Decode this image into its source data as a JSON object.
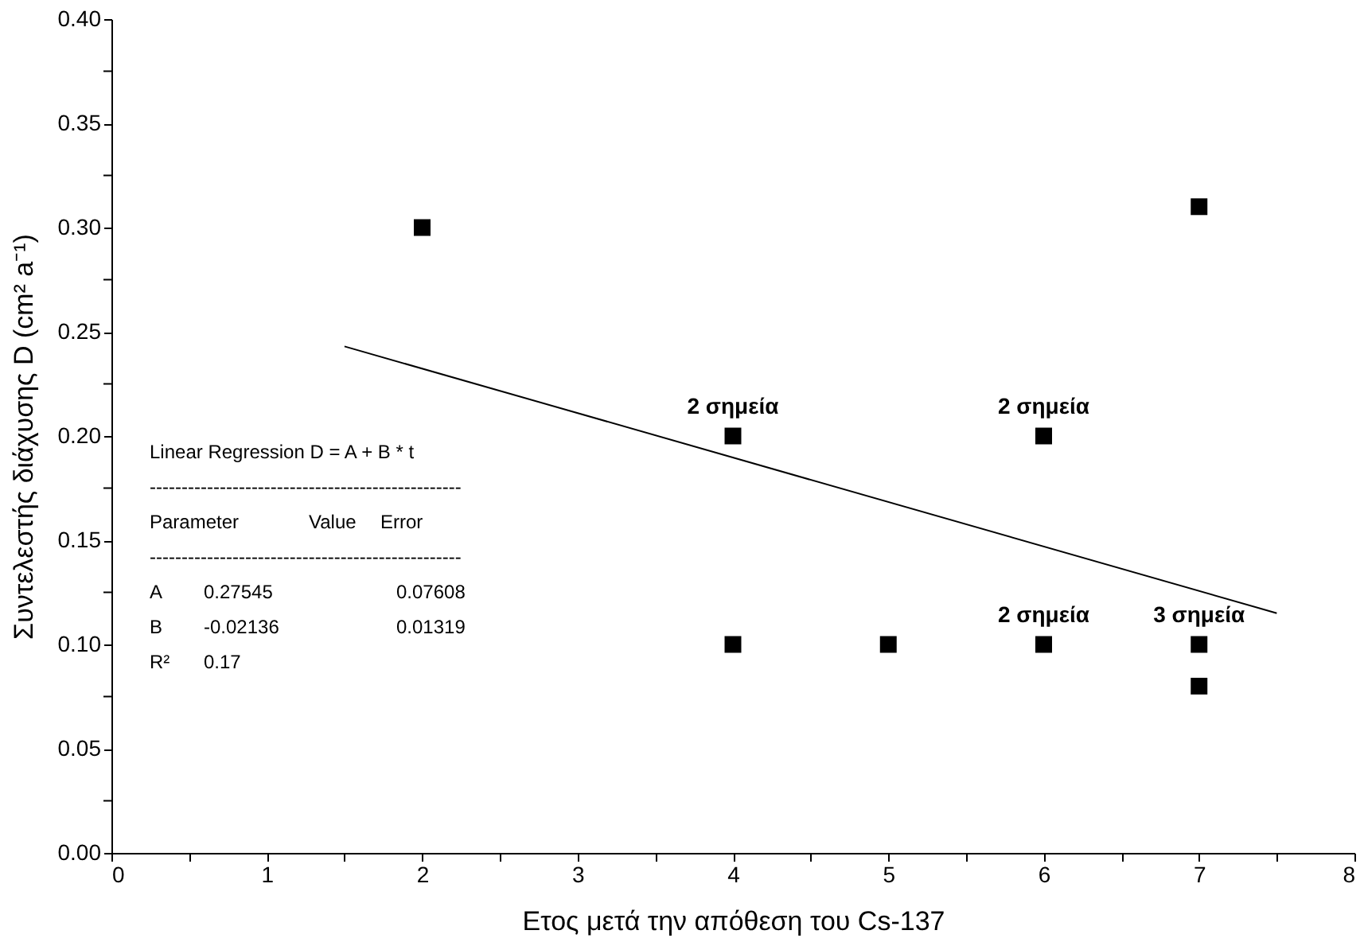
{
  "chart_data": {
    "type": "scatter",
    "xlabel": "Ετος μετά την απόθεση του Cs-137",
    "ylabel": "Συντελεστής διάχυσης D (cm² a⁻¹)",
    "xlim": [
      0,
      8
    ],
    "ylim": [
      0,
      0.4
    ],
    "xticks": [
      0,
      {
        "value": 0.5,
        "label": null
      },
      1,
      {
        "value": 1.5,
        "label": null
      },
      2,
      {
        "value": 2.5,
        "label": null
      },
      3,
      {
        "value": 3.5,
        "label": null
      },
      4,
      {
        "value": 4.5,
        "label": null
      },
      5,
      {
        "value": 5.5,
        "label": null
      },
      6,
      {
        "value": 6.5,
        "label": null
      },
      7,
      {
        "value": 7.5,
        "label": null
      },
      8
    ],
    "yticks": [
      {
        "value": 0,
        "label": "0.00"
      },
      {
        "value": 0.025,
        "label": null
      },
      {
        "value": 0.05,
        "label": "0.05"
      },
      {
        "value": 0.075,
        "label": null
      },
      {
        "value": 0.1,
        "label": "0.10"
      },
      {
        "value": 0.125,
        "label": null
      },
      {
        "value": 0.15,
        "label": "0.15"
      },
      {
        "value": 0.175,
        "label": null
      },
      {
        "value": 0.2,
        "label": "0.20"
      },
      {
        "value": 0.225,
        "label": null
      },
      {
        "value": 0.25,
        "label": "0.25"
      },
      {
        "value": 0.275,
        "label": null
      },
      {
        "value": 0.3,
        "label": "0.30"
      },
      {
        "value": 0.325,
        "label": null
      },
      {
        "value": 0.35,
        "label": "0.35"
      },
      {
        "value": 0.375,
        "label": null
      },
      {
        "value": 0.4,
        "label": "0.40"
      }
    ],
    "grid": false,
    "series": [
      {
        "color": "#000000",
        "marker": "square",
        "x": [
          2,
          4,
          4,
          5,
          6,
          6,
          7,
          7,
          7
        ],
        "values": [
          0.3,
          0.2,
          0.1,
          0.1,
          0.2,
          0.1,
          0.31,
          0.1,
          0.08
        ]
      },
      {
        "type": "line",
        "color": "#000000",
        "marker": "none",
        "line_style": "solid",
        "x": [
          1.5,
          7.5
        ],
        "values": [
          0.243,
          0.115
        ]
      }
    ],
    "annotations": [
      {
        "text": "2 σημεία",
        "x": 4,
        "y": 0.2
      },
      {
        "text": "2 σημεία",
        "x": 6,
        "y": 0.2
      },
      {
        "text": "2 σημεία",
        "x": 6,
        "y": 0.1
      },
      {
        "text": "3 σημεία",
        "x": 7,
        "y": 0.1
      },
      "Linear Regression D = A + B * t",
      "-------------------------------------------------",
      "Parameter            Value    Error",
      "-------------------------------------------------",
      "A         0.27545              0.07608",
      "B         -0.02136             0.01319",
      "R²        0.17"
    ]
  }
}
